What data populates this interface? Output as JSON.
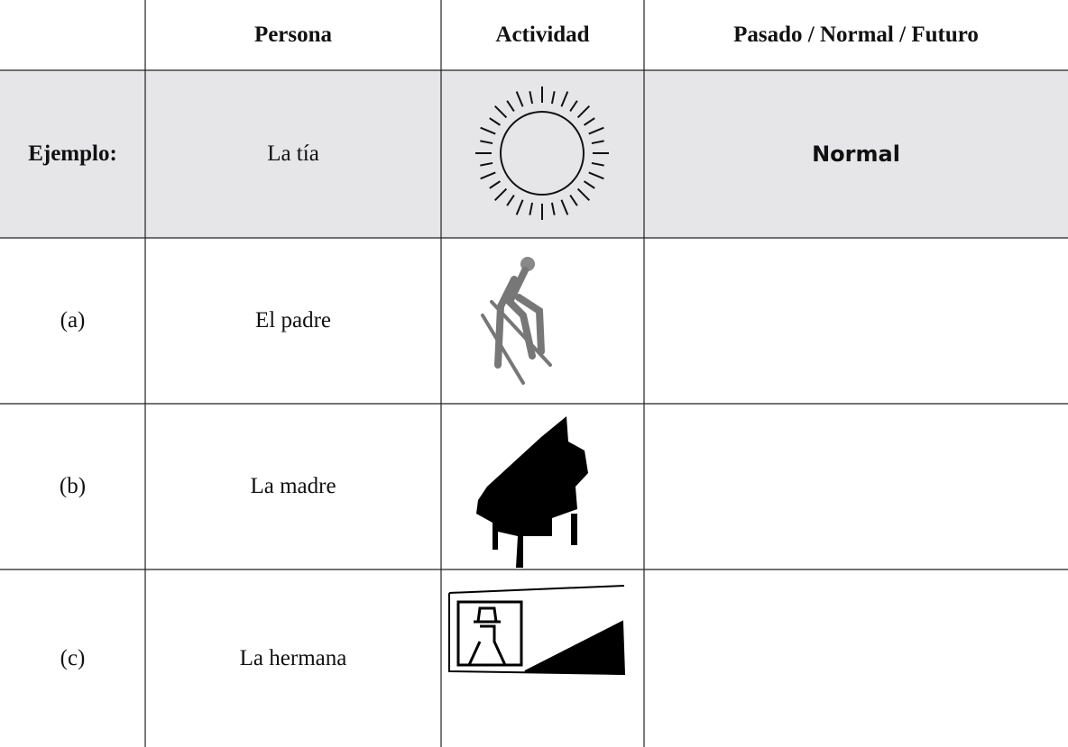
{
  "header": {
    "columns": [
      "Persona",
      "Actividad",
      "Pasado / Normal / Futuro"
    ]
  },
  "rows": [
    {
      "label": "Ejemplo:",
      "persona": "La tía",
      "answer": "Normal"
    },
    {
      "label": "(a)",
      "persona": "El padre"
    },
    {
      "label": "(b)",
      "persona": "La madre"
    },
    {
      "label": "(c)",
      "persona": "La hermana"
    }
  ]
}
